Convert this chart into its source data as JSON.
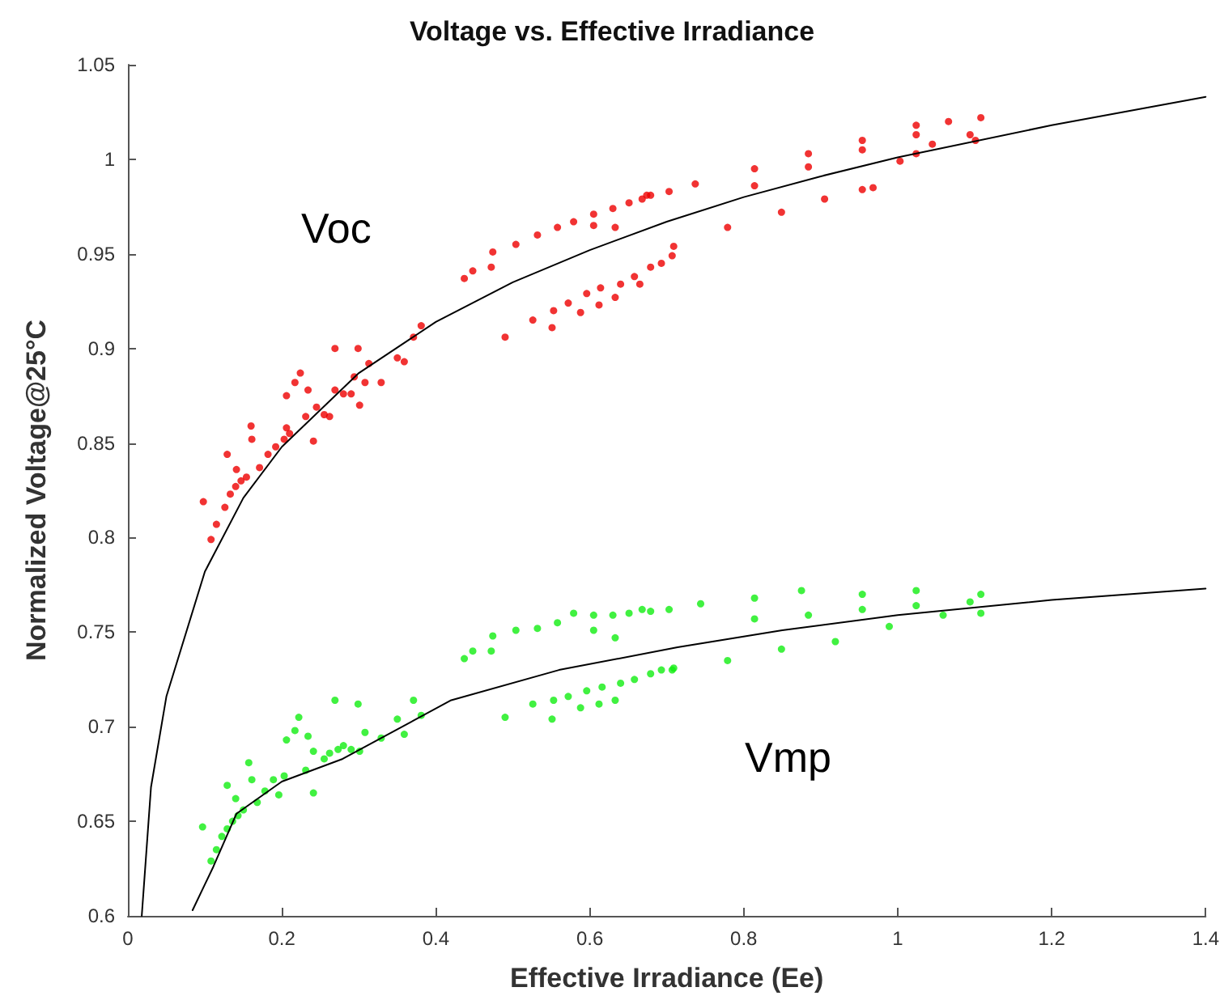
{
  "chart_data": {
    "type": "scatter",
    "title": "Voltage vs. Effective Irradiance",
    "xlabel": "Effective Irradiance (Ee)",
    "ylabel": "Normalized Voltage@25°C",
    "xlim": [
      0,
      1.4
    ],
    "xticks": [
      0,
      0.2,
      0.4,
      0.6,
      0.8,
      1,
      1.2,
      1.4
    ],
    "ylim": [
      0.6,
      1.05
    ],
    "yticks": [
      0.6,
      0.65,
      0.7,
      0.75,
      0.8,
      0.85,
      0.9,
      0.95,
      1,
      1.05
    ],
    "grid": false,
    "legend": false,
    "marker": "circle",
    "series": [
      {
        "name": "Voc",
        "color": "#ee0000",
        "x": [
          0.098,
          0.108,
          0.115,
          0.126,
          0.133,
          0.14,
          0.147,
          0.154,
          0.129,
          0.141,
          0.16,
          0.161,
          0.171,
          0.182,
          0.192,
          0.203,
          0.206,
          0.21,
          0.217,
          0.224,
          0.206,
          0.231,
          0.234,
          0.241,
          0.245,
          0.255,
          0.262,
          0.269,
          0.269,
          0.28,
          0.29,
          0.294,
          0.299,
          0.301,
          0.308,
          0.313,
          0.329,
          0.35,
          0.359,
          0.371,
          0.381,
          0.437,
          0.448,
          0.474,
          0.472,
          0.49,
          0.504,
          0.526,
          0.532,
          0.551,
          0.553,
          0.558,
          0.572,
          0.579,
          0.588,
          0.596,
          0.605,
          0.605,
          0.612,
          0.614,
          0.63,
          0.633,
          0.633,
          0.64,
          0.651,
          0.658,
          0.665,
          0.668,
          0.679,
          0.679,
          0.693,
          0.703,
          0.707,
          0.674,
          0.737,
          0.814,
          0.884,
          0.954,
          1.024,
          1.066,
          1.108,
          0.814,
          0.884,
          0.954,
          1.024,
          1.094,
          0.709,
          0.779,
          0.849,
          0.905,
          0.954,
          1.003,
          1.045,
          1.101,
          0.968,
          1.024
        ],
        "values": [
          0.819,
          0.799,
          0.807,
          0.816,
          0.823,
          0.827,
          0.83,
          0.832,
          0.844,
          0.836,
          0.859,
          0.852,
          0.837,
          0.844,
          0.848,
          0.852,
          0.858,
          0.855,
          0.882,
          0.887,
          0.875,
          0.864,
          0.878,
          0.851,
          0.869,
          0.865,
          0.864,
          0.9,
          0.878,
          0.876,
          0.876,
          0.885,
          0.9,
          0.87,
          0.882,
          0.892,
          0.882,
          0.895,
          0.893,
          0.906,
          0.912,
          0.937,
          0.941,
          0.951,
          0.943,
          0.906,
          0.955,
          0.915,
          0.96,
          0.911,
          0.92,
          0.964,
          0.924,
          0.967,
          0.919,
          0.929,
          0.971,
          0.965,
          0.923,
          0.932,
          0.974,
          0.927,
          0.964,
          0.934,
          0.977,
          0.938,
          0.934,
          0.979,
          0.981,
          0.943,
          0.945,
          0.983,
          0.949,
          0.981,
          0.987,
          0.995,
          1.003,
          1.01,
          1.018,
          1.02,
          1.022,
          0.986,
          0.996,
          1.005,
          1.013,
          1.013,
          0.954,
          0.964,
          0.972,
          0.979,
          0.984,
          0.999,
          1.008,
          1.01,
          0.985,
          1.003
        ]
      },
      {
        "name": "Vmp",
        "color": "#11ee11",
        "x": [
          0.097,
          0.108,
          0.115,
          0.122,
          0.129,
          0.129,
          0.136,
          0.14,
          0.143,
          0.15,
          0.157,
          0.161,
          0.168,
          0.178,
          0.189,
          0.196,
          0.203,
          0.206,
          0.217,
          0.222,
          0.231,
          0.234,
          0.241,
          0.241,
          0.255,
          0.262,
          0.269,
          0.273,
          0.28,
          0.29,
          0.299,
          0.301,
          0.308,
          0.329,
          0.35,
          0.359,
          0.371,
          0.381,
          0.437,
          0.448,
          0.474,
          0.472,
          0.49,
          0.504,
          0.526,
          0.532,
          0.551,
          0.553,
          0.558,
          0.572,
          0.579,
          0.588,
          0.596,
          0.605,
          0.605,
          0.612,
          0.616,
          0.63,
          0.633,
          0.633,
          0.64,
          0.651,
          0.658,
          0.668,
          0.679,
          0.679,
          0.693,
          0.703,
          0.707,
          0.744,
          0.814,
          0.875,
          0.954,
          1.024,
          1.108,
          0.814,
          0.884,
          0.954,
          1.024,
          1.094,
          0.709,
          0.779,
          0.849,
          0.919,
          0.989,
          1.059,
          1.108
        ],
        "values": [
          0.647,
          0.629,
          0.635,
          0.642,
          0.646,
          0.669,
          0.65,
          0.662,
          0.653,
          0.656,
          0.681,
          0.672,
          0.66,
          0.666,
          0.672,
          0.664,
          0.674,
          0.693,
          0.698,
          0.705,
          0.677,
          0.695,
          0.687,
          0.665,
          0.683,
          0.686,
          0.714,
          0.688,
          0.69,
          0.688,
          0.712,
          0.687,
          0.697,
          0.694,
          0.704,
          0.696,
          0.714,
          0.706,
          0.736,
          0.74,
          0.748,
          0.74,
          0.705,
          0.751,
          0.712,
          0.752,
          0.704,
          0.714,
          0.755,
          0.716,
          0.76,
          0.71,
          0.719,
          0.759,
          0.751,
          0.712,
          0.721,
          0.759,
          0.747,
          0.714,
          0.723,
          0.76,
          0.725,
          0.762,
          0.761,
          0.728,
          0.73,
          0.762,
          0.73,
          0.765,
          0.768,
          0.772,
          0.77,
          0.772,
          0.77,
          0.757,
          0.759,
          0.762,
          0.764,
          0.766,
          0.731,
          0.735,
          0.741,
          0.745,
          0.753,
          0.759,
          0.76
        ]
      },
      {
        "type": "line",
        "color": "#000000",
        "marker": "none",
        "x": [
          0.018,
          0.03,
          0.05,
          0.1,
          0.15,
          0.2,
          0.3,
          0.4,
          0.5,
          0.6,
          0.7,
          0.8,
          0.9,
          1,
          1.2,
          1.4
        ],
        "values": [
          0.6,
          0.668,
          0.716,
          0.782,
          0.821,
          0.848,
          0.887,
          0.914,
          0.935,
          0.952,
          0.967,
          0.98,
          0.991,
          1.001,
          1.018,
          1.033
        ]
      },
      {
        "type": "line",
        "color": "#000000",
        "marker": "none",
        "x": [
          0.084,
          0.111,
          0.141,
          0.2,
          0.279,
          0.42,
          0.56,
          0.714,
          0.85,
          1,
          1.2,
          1.4
        ],
        "values": [
          0.603,
          0.626,
          0.654,
          0.671,
          0.683,
          0.714,
          0.73,
          0.742,
          0.751,
          0.759,
          0.767,
          0.773
        ]
      }
    ]
  }
}
